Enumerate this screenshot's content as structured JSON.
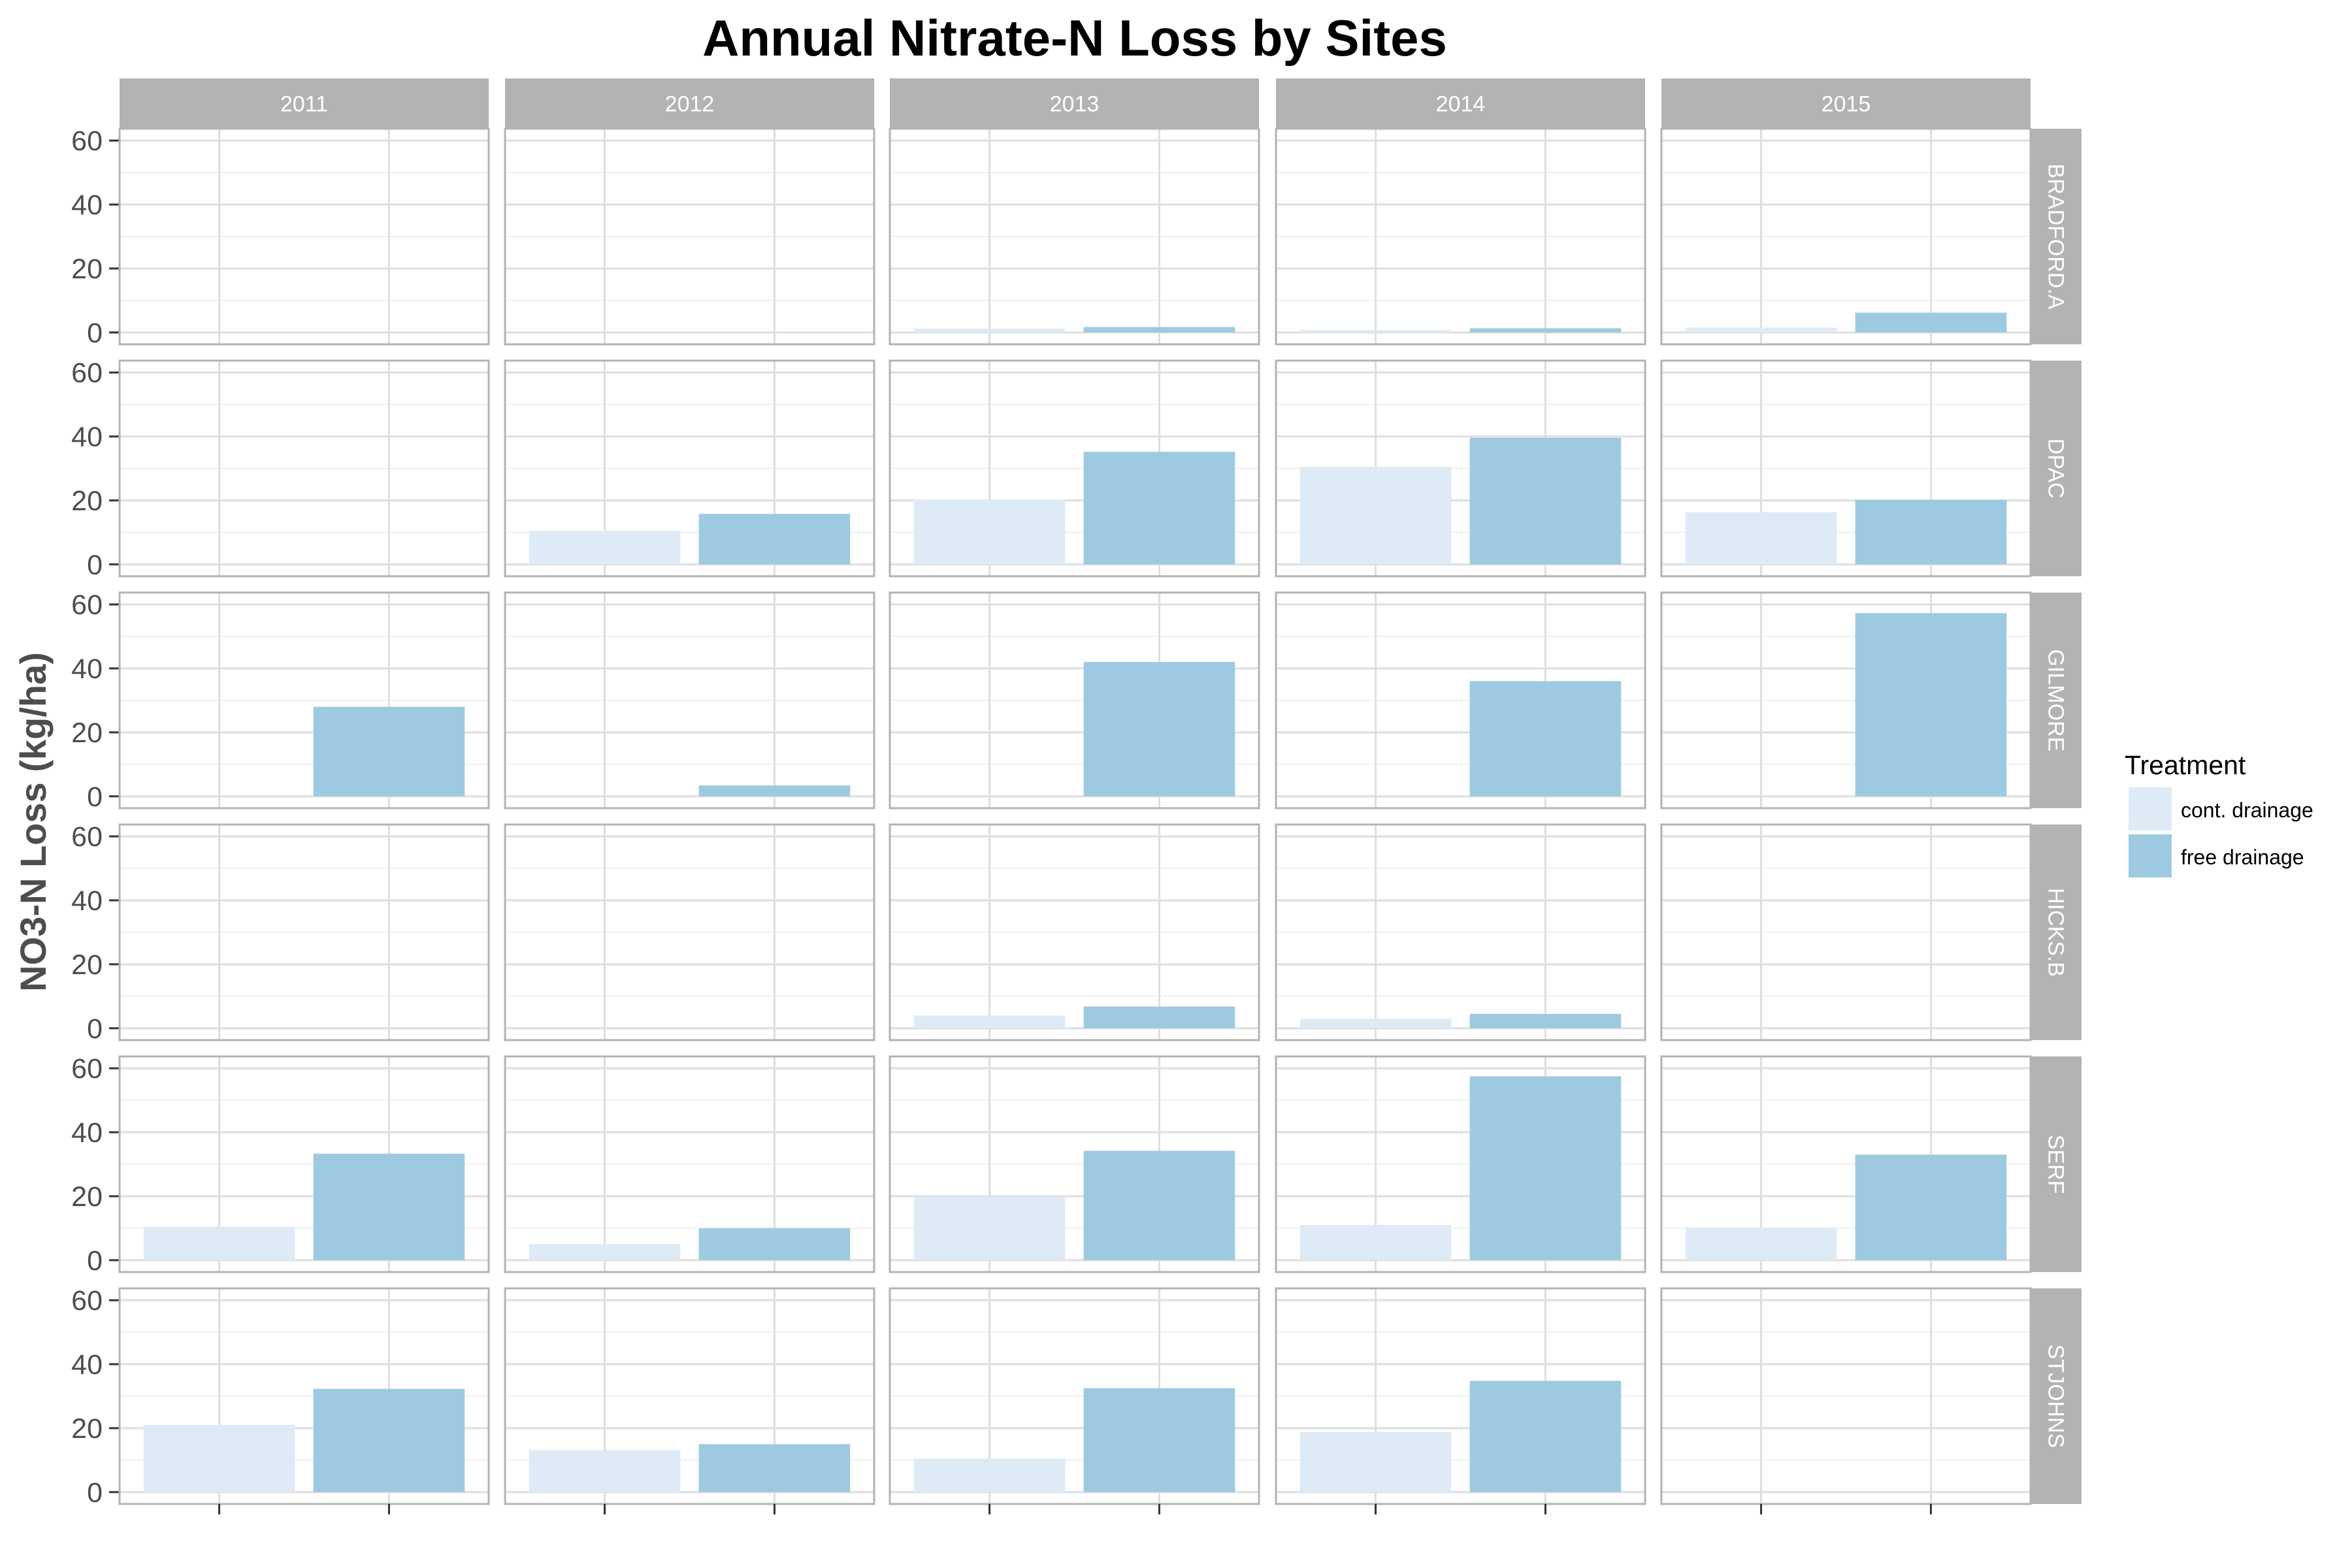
{
  "chart_data": {
    "type": "bar",
    "title": "Annual Nitrate-N Loss by Sites",
    "ylabel": "NO3-N Loss (kg/ha)",
    "xlabel": "",
    "ylim": [
      0,
      60
    ],
    "yticks": [
      0,
      20,
      40,
      60
    ],
    "grid": "on",
    "columns": [
      "2011",
      "2012",
      "2013",
      "2014",
      "2015"
    ],
    "rows": [
      "BRADFORD.A",
      "DPAC",
      "GILMORE",
      "HICKS.B",
      "SERF",
      "STJOHNS"
    ],
    "legend": {
      "title": "Treatment",
      "position": "right",
      "entries": [
        {
          "label": "cont. drainage",
          "color": "#deebf7"
        },
        {
          "label": "free drainage",
          "color": "#9ecae1"
        }
      ]
    },
    "series": [
      {
        "name": "cont. drainage",
        "values": [
          [
            null,
            null,
            1.2,
            0.8,
            1.5
          ],
          [
            null,
            10.5,
            20.2,
            30.5,
            16.3
          ],
          [
            null,
            null,
            null,
            null,
            null
          ],
          [
            null,
            null,
            4.0,
            3.0,
            null
          ],
          [
            10.5,
            5.0,
            19.8,
            11.0,
            10.2
          ],
          [
            21.0,
            13.2,
            10.5,
            18.8,
            null
          ]
        ]
      },
      {
        "name": "free drainage",
        "values": [
          [
            null,
            null,
            1.7,
            1.3,
            6.2
          ],
          [
            null,
            15.8,
            35.2,
            39.6,
            20.2
          ],
          [
            28.0,
            3.4,
            42.0,
            36.0,
            57.3
          ],
          [
            null,
            null,
            6.8,
            4.5,
            null
          ],
          [
            33.3,
            10.0,
            34.2,
            57.5,
            33.0
          ],
          [
            32.3,
            15.0,
            32.5,
            34.8,
            null
          ]
        ]
      }
    ]
  }
}
